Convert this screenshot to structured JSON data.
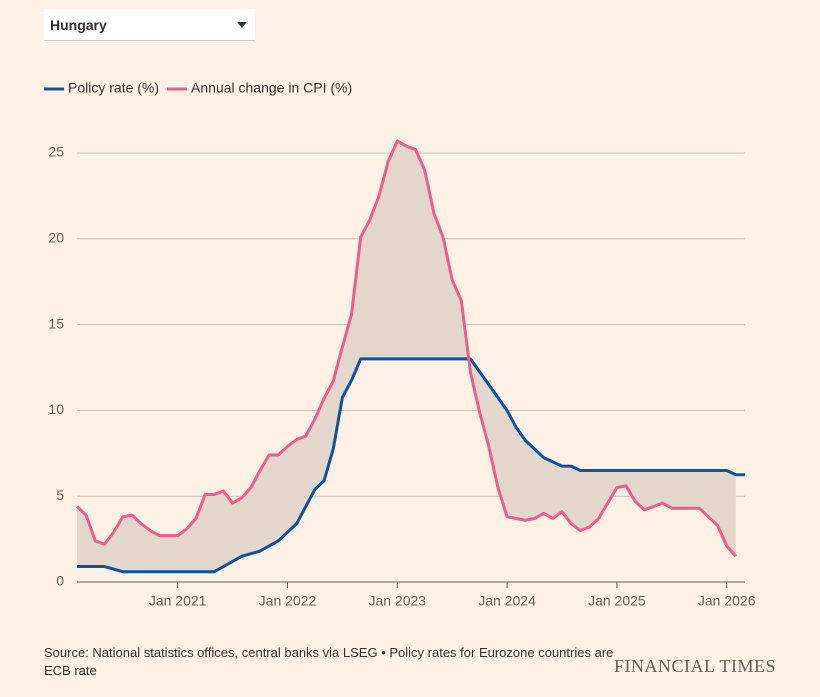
{
  "selector": "Hungary",
  "chart_data": {
    "type": "line",
    "x": [
      "2020-02",
      "2020-03",
      "2020-04",
      "2020-05",
      "2020-06",
      "2020-07",
      "2020-08",
      "2020-09",
      "2020-10",
      "2020-11",
      "2020-12",
      "2021-01",
      "2021-02",
      "2021-03",
      "2021-04",
      "2021-05",
      "2021-06",
      "2021-07",
      "2021-08",
      "2021-09",
      "2021-10",
      "2021-11",
      "2021-12",
      "2022-01",
      "2022-02",
      "2022-03",
      "2022-04",
      "2022-05",
      "2022-06",
      "2022-07",
      "2022-08",
      "2022-09",
      "2022-10",
      "2022-11",
      "2022-12",
      "2023-01",
      "2023-02",
      "2023-03",
      "2023-04",
      "2023-05",
      "2023-06",
      "2023-07",
      "2023-08",
      "2023-09",
      "2023-10",
      "2023-11",
      "2023-12",
      "2024-01",
      "2024-02",
      "2024-03",
      "2024-04",
      "2024-05",
      "2024-06",
      "2024-07",
      "2024-08",
      "2024-09",
      "2024-10",
      "2024-11",
      "2024-12",
      "2025-01",
      "2025-02",
      "2025-03",
      "2025-04",
      "2025-05",
      "2025-06",
      "2025-07",
      "2025-08",
      "2025-09",
      "2025-10",
      "2025-11",
      "2025-12",
      "2026-01",
      "2026-02",
      "2026-03"
    ],
    "series": [
      {
        "name": "Policy rate (%)",
        "color": "#0f5499",
        "values": [
          0.9,
          0.9,
          0.9,
          0.9,
          0.75,
          0.6,
          0.6,
          0.6,
          0.6,
          0.6,
          0.6,
          0.6,
          0.6,
          0.6,
          0.6,
          0.6,
          0.9,
          1.2,
          1.5,
          1.65,
          1.8,
          2.1,
          2.4,
          2.9,
          3.4,
          4.4,
          5.4,
          5.9,
          7.75,
          10.75,
          11.75,
          13,
          13,
          13,
          13,
          13,
          13,
          13,
          13,
          13,
          13,
          13,
          13,
          13,
          12.25,
          11.5,
          10.75,
          10,
          9,
          8.25,
          7.75,
          7.25,
          7,
          6.75,
          6.75,
          6.5,
          6.5,
          6.5,
          6.5,
          6.5,
          6.5,
          6.5,
          6.5,
          6.5,
          6.5,
          6.5,
          6.5,
          6.5,
          6.5,
          6.5,
          6.5,
          6.5,
          6.25,
          6.25
        ]
      },
      {
        "name": "Annual change in CPI (%)",
        "color": "#eb5e8d",
        "values": [
          4.4,
          3.9,
          2.4,
          2.2,
          2.9,
          3.8,
          3.9,
          3.4,
          3.0,
          2.7,
          2.7,
          2.7,
          3.1,
          3.7,
          5.1,
          5.1,
          5.3,
          4.6,
          4.9,
          5.5,
          6.5,
          7.4,
          7.4,
          7.9,
          8.3,
          8.5,
          9.5,
          10.7,
          11.7,
          13.7,
          15.6,
          20.1,
          21.1,
          22.5,
          24.5,
          25.7,
          25.4,
          25.2,
          24.0,
          21.5,
          20.1,
          17.6,
          16.4,
          12.2,
          9.9,
          7.9,
          5.5,
          3.8,
          3.7,
          3.6,
          3.7,
          4.0,
          3.7,
          4.1,
          3.4,
          3.0,
          3.2,
          3.7,
          4.6,
          5.5,
          5.6,
          4.7,
          4.2,
          4.4,
          4.6,
          4.3,
          4.3,
          4.3,
          4.3,
          3.8,
          3.3,
          2.1,
          1.5,
          null
        ]
      }
    ],
    "xlim": [
      "2020-02",
      "2026-03"
    ],
    "xticks": [
      {
        "value": "2021-01",
        "label": "Jan 2021"
      },
      {
        "value": "2022-01",
        "label": "Jan 2022"
      },
      {
        "value": "2023-01",
        "label": "Jan 2023"
      },
      {
        "value": "2024-01",
        "label": "Jan 2024"
      },
      {
        "value": "2025-01",
        "label": "Jan 2025"
      },
      {
        "value": "2026-01",
        "label": "Jan 2026"
      }
    ],
    "ylim": [
      0,
      25
    ],
    "yticks": [
      0,
      5,
      10,
      15,
      20,
      25
    ],
    "grid": true,
    "fill_between": true
  },
  "source": "Source: National statistics offices, central banks via LSEG • Policy rates for Eurozone countries are ECB rate",
  "brand": "FINANCIAL TIMES"
}
